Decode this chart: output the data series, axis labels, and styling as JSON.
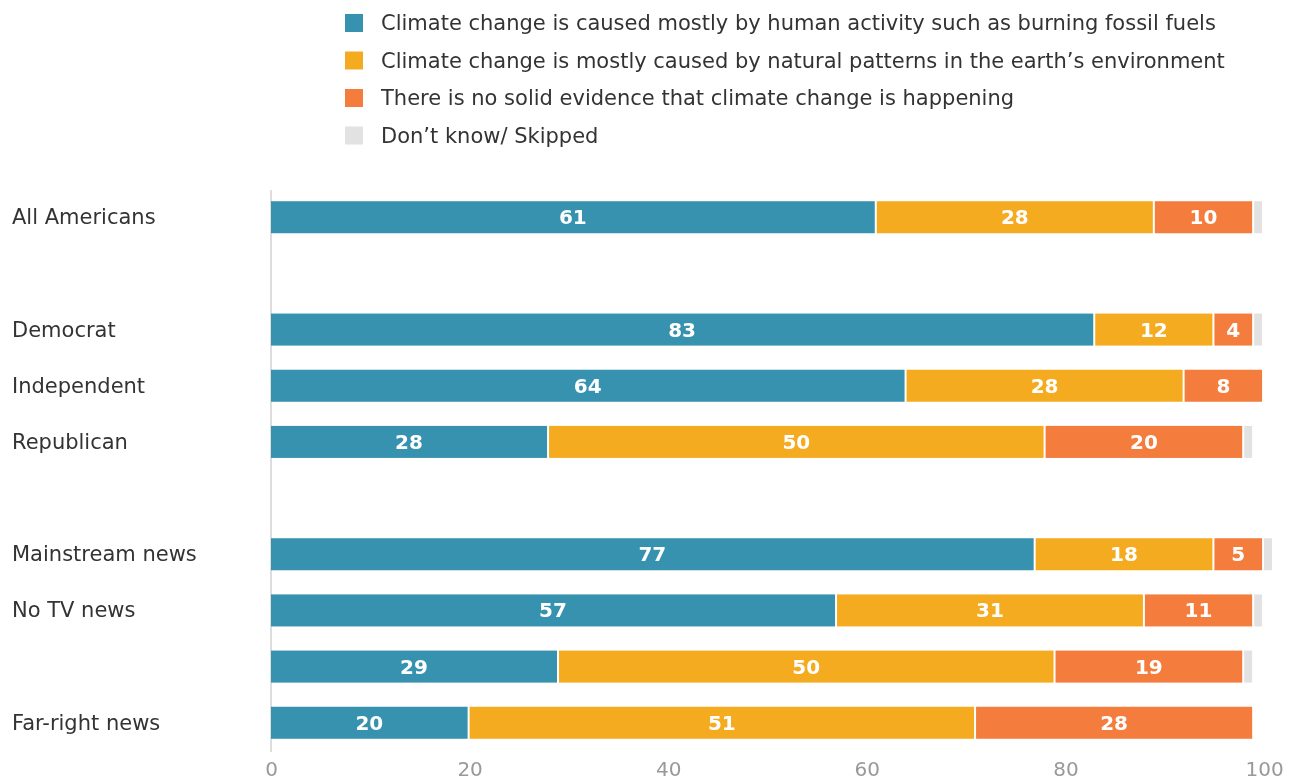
{
  "chart_data": {
    "type": "bar",
    "orientation": "horizontal",
    "stacked": true,
    "categories": [
      "All Americans",
      null,
      "Democrat",
      "Independent",
      "Republican",
      null,
      "Mainstream news",
      "No TV news",
      null,
      "Far-right news"
    ],
    "series": [
      {
        "name": "Climate change is caused mostly by human activity such as burning fossil fuels",
        "color": "#3692ae",
        "values": [
          61,
          null,
          83,
          64,
          28,
          null,
          77,
          57,
          29,
          20
        ],
        "value_labels": [
          "61",
          null,
          "83",
          "64",
          "28",
          null,
          "77",
          "57",
          "29",
          "20"
        ]
      },
      {
        "name": "Climate change is mostly caused by natural patterns in the earth’s environment",
        "color": "#f5ab1f",
        "values": [
          28,
          null,
          12,
          28,
          50,
          null,
          18,
          31,
          50,
          51
        ],
        "value_labels": [
          "28",
          null,
          "12",
          "28",
          "50",
          null,
          "18",
          "31",
          "50",
          "51"
        ]
      },
      {
        "name": "There is no solid evidence that climate change is happening",
        "color": "#f47c3c",
        "values": [
          10,
          null,
          4,
          8,
          20,
          null,
          5,
          11,
          19,
          28
        ],
        "value_labels": [
          "10",
          null,
          "4",
          "8",
          "20",
          null,
          "5",
          "11",
          "19",
          "28"
        ]
      },
      {
        "name": "Don’t know/ Skipped",
        "color": "#e2e2e2",
        "values": [
          1,
          null,
          1,
          null,
          1,
          null,
          1,
          1,
          1,
          null
        ]
      }
    ],
    "xlim": [
      0,
      101
    ],
    "xticks": [
      0,
      20,
      40,
      60,
      80,
      100
    ],
    "legend": "top"
  }
}
